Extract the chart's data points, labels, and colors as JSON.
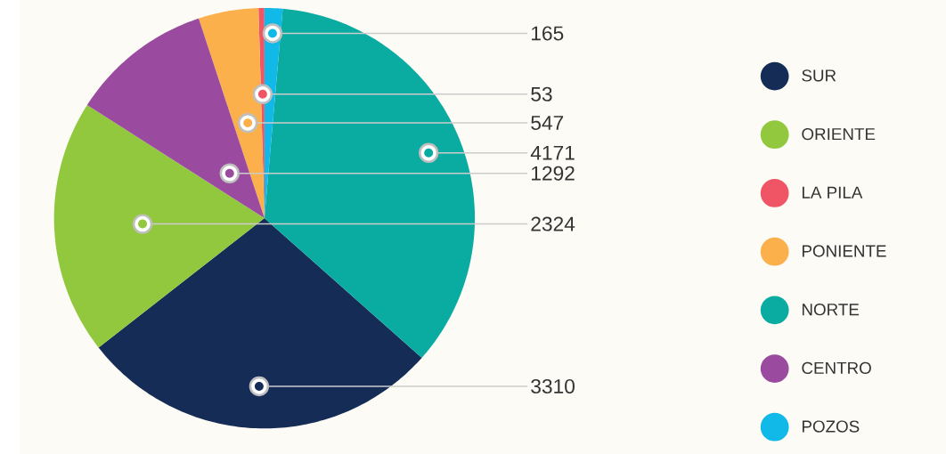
{
  "chart_data": {
    "type": "pie",
    "categories": [
      "SUR",
      "ORIENTE",
      "LA PILA",
      "PONIENTE",
      "NORTE",
      "CENTRO",
      "POZOS"
    ],
    "values": [
      3310,
      2324,
      53,
      547,
      4171,
      1292,
      165
    ],
    "colors": [
      "#152c57",
      "#92c83e",
      "#f05565",
      "#fbb04b",
      "#0aaba0",
      "#9a4b9f",
      "#11b9e8"
    ],
    "data_labels": true,
    "legend": "right"
  }
}
